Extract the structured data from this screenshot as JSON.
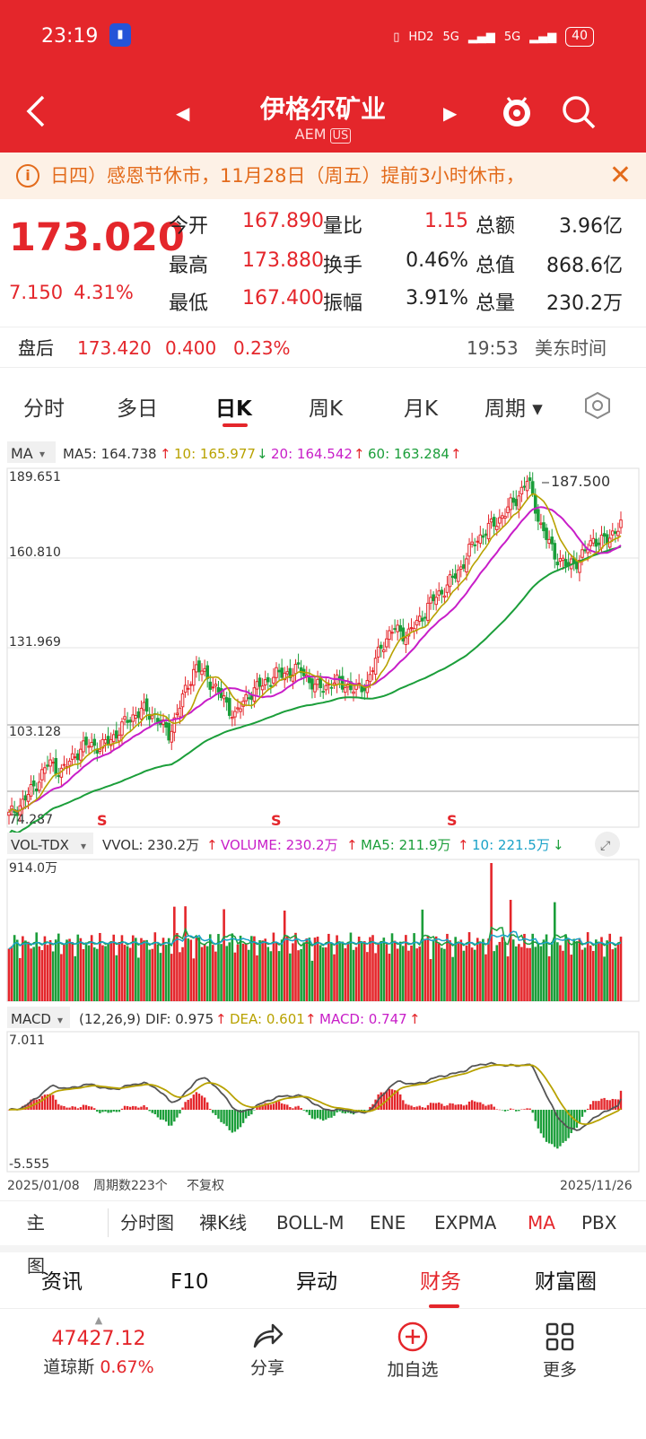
{
  "status": {
    "time": "23:19",
    "battery": "40",
    "hd": "HD2",
    "net1": "5G",
    "net2": "5G"
  },
  "header": {
    "name": "伊格尔矿业",
    "ticker": "AEM",
    "market": "US"
  },
  "notice": {
    "text": "日四）感恩节休市，11月28日（周五）提前3小时休市，"
  },
  "quote": {
    "price": "173.020",
    "change": "7.150",
    "change_pct": "4.31%",
    "rows": [
      {
        "l1": "今开",
        "v1": "167.890",
        "l2": "量比",
        "v2": "1.15",
        "l3": "总额",
        "v3": "3.96亿"
      },
      {
        "l1": "最高",
        "v1": "173.880",
        "l2": "换手",
        "v2": "0.46%",
        "l3": "总值",
        "v3": "868.6亿"
      },
      {
        "l1": "最低",
        "v1": "167.400",
        "l2": "振幅",
        "v2": "3.91%",
        "l3": "总量",
        "v3": "230.2万"
      }
    ]
  },
  "after_hours": {
    "label": "盘后",
    "price": "173.420",
    "change": "0.400",
    "pct": "0.23%",
    "time": "19:53",
    "tz": "美东时间"
  },
  "period_tabs": [
    "分时",
    "多日",
    "日K",
    "周K",
    "月K",
    "周期"
  ],
  "chart": {
    "ma_label": "MA",
    "ma5": "MA5: 164.738",
    "ma10": "10: 165.977",
    "ma20": "20: 164.542",
    "ma60": "60: 163.284",
    "y_top": "189.651",
    "y2": "160.810",
    "y3": "131.969",
    "y4": "103.128",
    "y_bot": "74.287",
    "high_label": "187.500",
    "s_marker": "S",
    "vol_label": "VOL-TDX",
    "vvol": "VVOL: 230.2万",
    "volume": "VOLUME: 230.2万",
    "vma5": "MA5: 211.9万",
    "vma10": "10: 221.5万",
    "vol_max": "914.0万",
    "macd_label": "MACD",
    "macd_params": "(12,26,9)",
    "dif": "DIF: 0.975",
    "dea": "DEA: 0.601",
    "macd": "MACD: 0.747",
    "macd_top": "7.011",
    "macd_bot": "-5.555",
    "date_start": "2025/01/08",
    "periods": "周期数223个",
    "adjust": "不复权",
    "date_end": "2025/11/26"
  },
  "indicator_tabs": [
    "主图",
    "分时图",
    "裸K线",
    "BOLL-M",
    "ENE",
    "EXPMA",
    "MA",
    "PBX"
  ],
  "section_tabs": [
    "资讯",
    "F10",
    "异动",
    "财务",
    "财富圈"
  ],
  "bottom": {
    "index_value": "47427.12",
    "index_name": "道琼斯",
    "index_pct": "0.67%",
    "share": "分享",
    "add": "加自选",
    "more": "更多"
  },
  "chart_data": {
    "type": "candlestick",
    "title": "",
    "x_range": [
      "2025/01/08",
      "2025/11/26"
    ],
    "periods": 223,
    "price_ylim": [
      74.287,
      189.651
    ],
    "price_ticks": [
      189.651,
      160.81,
      131.969,
      103.128,
      74.287
    ],
    "last_close": 173.02,
    "period_high": 187.5,
    "ma": {
      "MA5": 164.738,
      "MA10": 165.977,
      "MA20": 164.542,
      "MA60": 163.284
    },
    "close_trend": [
      78,
      82,
      88,
      95,
      92,
      98,
      101,
      100,
      104,
      109,
      112,
      110,
      104,
      115,
      126,
      122,
      116,
      110,
      117,
      120,
      123,
      124,
      125,
      119,
      120,
      121,
      118,
      121,
      133,
      138,
      136,
      142,
      148,
      152,
      158,
      166,
      170,
      174,
      179,
      186,
      171,
      162,
      158,
      161,
      167,
      166,
      173
    ],
    "volume": {
      "max": "914.0万",
      "last": "230.2万",
      "MA5": "211.9万",
      "MA10": "221.5万"
    },
    "macd": {
      "range": [
        -5.555,
        7.011
      ],
      "DIF": 0.975,
      "DEA": 0.601,
      "MACD": 0.747
    }
  }
}
